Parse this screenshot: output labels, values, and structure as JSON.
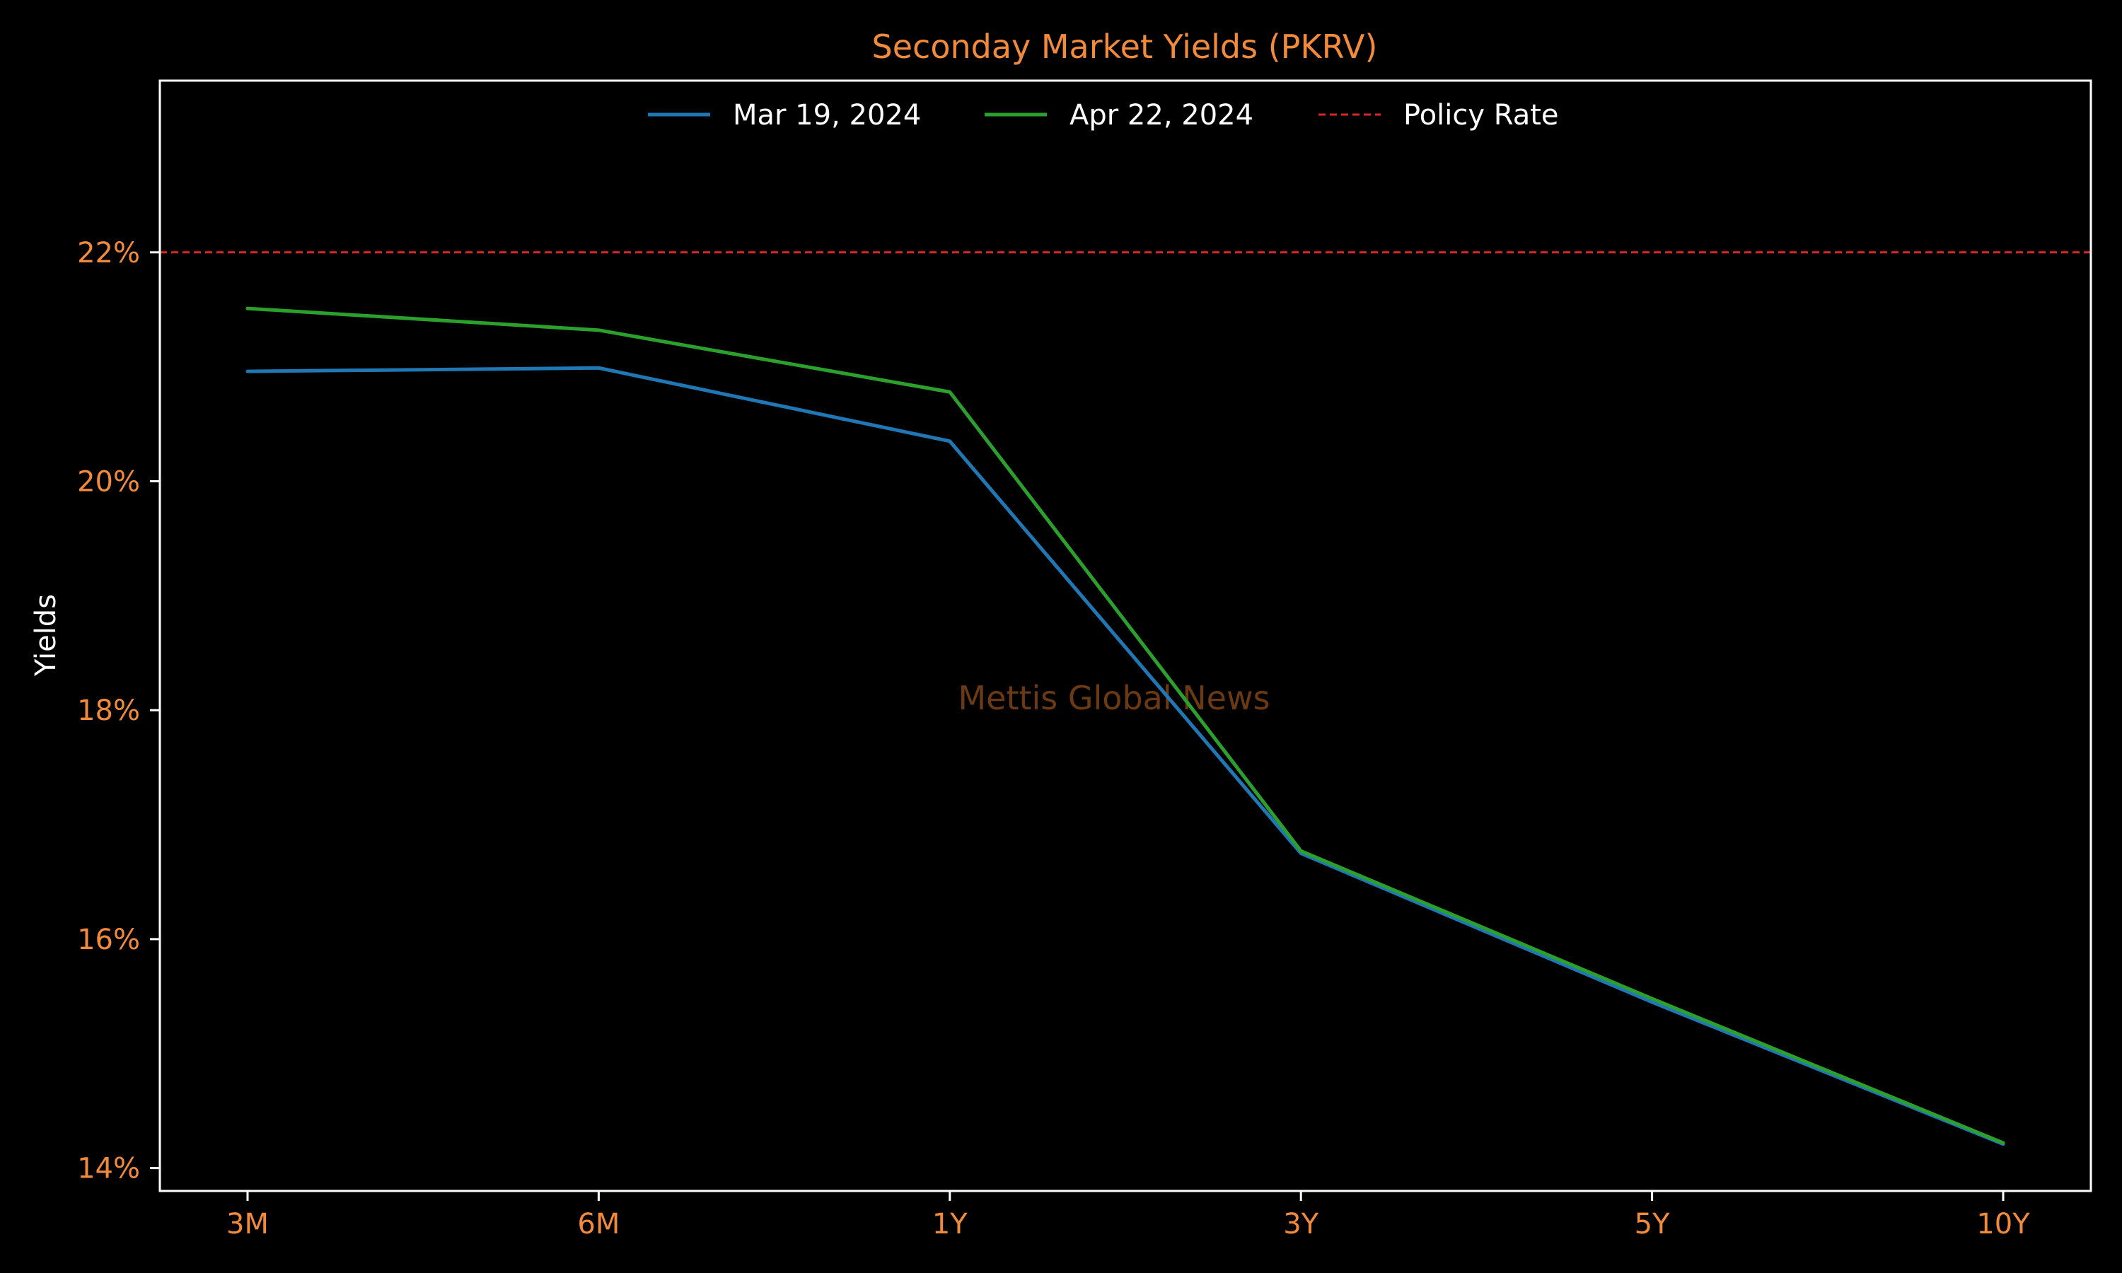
{
  "chart_data": {
    "type": "line",
    "title": "Seconday Market Yields (PKRV)",
    "xlabel": "",
    "ylabel": "Yields",
    "categories": [
      "3M",
      "6M",
      "1Y",
      "3Y",
      "5Y",
      "10Y"
    ],
    "series": [
      {
        "name": "Mar 19, 2024",
        "values": [
          20.96,
          20.99,
          20.35,
          16.75,
          15.45,
          14.21
        ],
        "color": "#1f77b4",
        "style": "solid"
      },
      {
        "name": "Apr 22, 2024",
        "values": [
          21.51,
          21.32,
          20.78,
          16.77,
          15.48,
          14.22
        ],
        "color": "#2ca02c",
        "style": "solid"
      }
    ],
    "reference_lines": [
      {
        "name": "Policy Rate",
        "value": 22.0,
        "color": "#d62728",
        "style": "dashed"
      }
    ],
    "ylim": [
      13.8,
      23.5
    ],
    "yticks": [
      14,
      16,
      18,
      20,
      22
    ],
    "ytick_labels": [
      "14%",
      "16%",
      "18%",
      "20%",
      "22%"
    ],
    "grid": false,
    "legend": "top-center",
    "watermark": "Mettis Global News",
    "colors": {
      "background": "#000000",
      "axes": "#ffffff",
      "tick_labels": "#f28a3c",
      "title": "#f28a3c",
      "text": "#ffffff",
      "watermark": "#6b3a12"
    }
  }
}
